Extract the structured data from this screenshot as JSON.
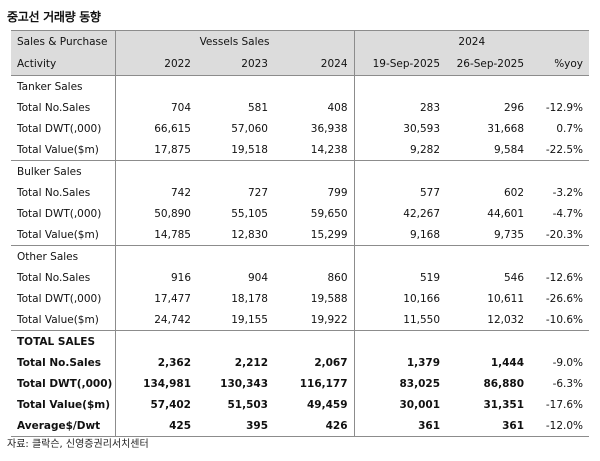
{
  "title": "중고선 거래량 동향",
  "header": {
    "row1": {
      "c0": "Sales & Purchase",
      "vessels": "Vessels Sales",
      "year": "2024"
    },
    "row2": [
      "Activity",
      "2022",
      "2023",
      "2024",
      "19-Sep-2025",
      "26-Sep-2025",
      "%yoy"
    ]
  },
  "sections": [
    {
      "name": "Tanker Sales",
      "rows": [
        [
          "Total No.Sales",
          "704",
          "581",
          "408",
          "283",
          "296",
          "-12.9%"
        ],
        [
          "Total DWT(,000)",
          "66,615",
          "57,060",
          "36,938",
          "30,593",
          "31,668",
          "0.7%"
        ],
        [
          "Total Value($m)",
          "17,875",
          "19,518",
          "14,238",
          "9,282",
          "9,584",
          "-22.5%"
        ]
      ]
    },
    {
      "name": "Bulker Sales",
      "rows": [
        [
          "Total No.Sales",
          "742",
          "727",
          "799",
          "577",
          "602",
          "-3.2%"
        ],
        [
          "Total DWT(,000)",
          "50,890",
          "55,105",
          "59,650",
          "42,267",
          "44,601",
          "-4.7%"
        ],
        [
          "Total Value($m)",
          "14,785",
          "12,830",
          "15,299",
          "9,168",
          "9,735",
          "-20.3%"
        ]
      ]
    },
    {
      "name": "Other Sales",
      "rows": [
        [
          "Total No.Sales",
          "916",
          "904",
          "860",
          "519",
          "546",
          "-12.6%"
        ],
        [
          "Total DWT(,000)",
          "17,477",
          "18,178",
          "19,588",
          "10,166",
          "10,611",
          "-26.6%"
        ],
        [
          "Total Value($m)",
          "24,742",
          "19,155",
          "19,922",
          "11,550",
          "12,032",
          "-10.6%"
        ]
      ]
    },
    {
      "name": "TOTAL SALES",
      "rows": [
        [
          "Total No.Sales",
          "2,362",
          "2,212",
          "2,067",
          "1,379",
          "1,444",
          "-9.0%"
        ],
        [
          "Total DWT(,000)",
          "134,981",
          "130,343",
          "116,177",
          "83,025",
          "86,880",
          "-6.3%"
        ],
        [
          "Total Value($m)",
          "57,402",
          "51,503",
          "49,459",
          "30,001",
          "31,351",
          "-17.6%"
        ],
        [
          "Average$/Dwt",
          "425",
          "395",
          "426",
          "361",
          "361",
          "-12.0%"
        ]
      ]
    }
  ],
  "source": "자료: 클락슨, 신영증권리서치센터"
}
